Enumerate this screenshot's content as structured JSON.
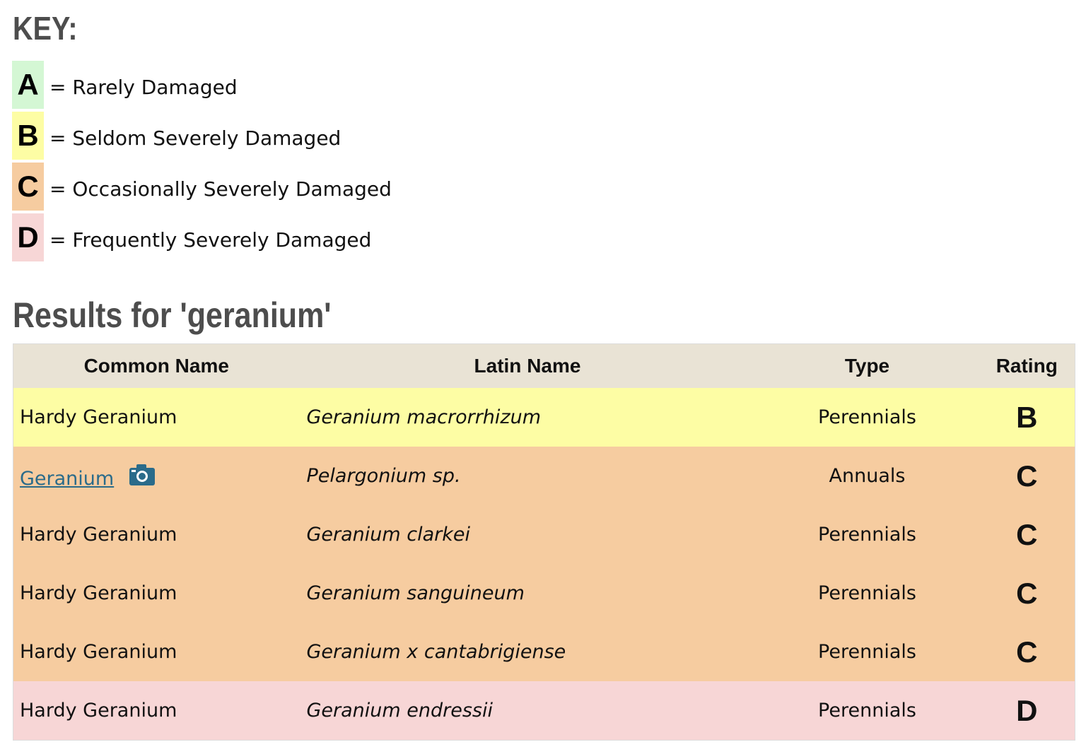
{
  "key": {
    "title": "KEY:",
    "items": [
      {
        "letter": "A",
        "desc": "= Rarely Damaged",
        "color": "#d4f7d4"
      },
      {
        "letter": "B",
        "desc": "= Seldom Severely Damaged",
        "color": "#fdfda4"
      },
      {
        "letter": "C",
        "desc": "= Occasionally Severely Damaged",
        "color": "#f6cca0"
      },
      {
        "letter": "D",
        "desc": "= Frequently Severely Damaged",
        "color": "#f7d6d6"
      }
    ]
  },
  "results": {
    "title": "Results for 'geranium'",
    "header_color": "#e9e3d5",
    "columns": [
      "Common Name",
      "Latin Name",
      "Type",
      "Rating"
    ],
    "rows": [
      {
        "common": "Hardy Geranium",
        "latin": "Geranium macrorrhizum",
        "type": "Perennials",
        "rating": "B",
        "color": "#fdfda4",
        "link": false,
        "photo": false
      },
      {
        "common": "Geranium",
        "latin": "Pelargonium sp.",
        "type": "Annuals",
        "rating": "C",
        "color": "#f6cca0",
        "link": true,
        "photo": true,
        "photo_icon": "camera-icon"
      },
      {
        "common": "Hardy Geranium",
        "latin": "Geranium clarkei",
        "type": "Perennials",
        "rating": "C",
        "color": "#f6cca0",
        "link": false,
        "photo": false
      },
      {
        "common": "Hardy Geranium",
        "latin": "Geranium sanguineum",
        "type": "Perennials",
        "rating": "C",
        "color": "#f6cca0",
        "link": false,
        "photo": false
      },
      {
        "common": "Hardy Geranium",
        "latin": "Geranium x cantabrigiense",
        "type": "Perennials",
        "rating": "C",
        "color": "#f6cca0",
        "link": false,
        "photo": false
      },
      {
        "common": "Hardy Geranium",
        "latin": "Geranium endressii",
        "type": "Perennials",
        "rating": "D",
        "color": "#f7d6d6",
        "link": false,
        "photo": false
      }
    ]
  },
  "colors": {
    "heading": "#4d4d4d",
    "link": "#2a6b8a"
  }
}
